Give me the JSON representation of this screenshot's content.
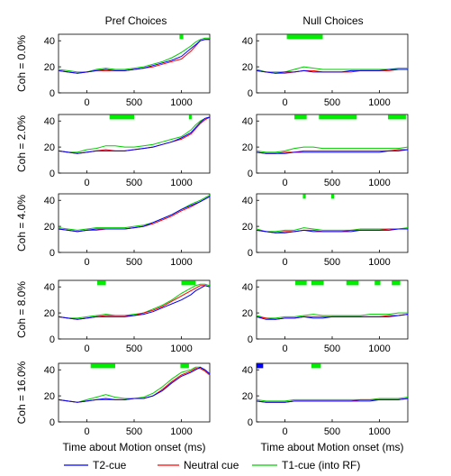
{
  "figure": {
    "x_axis_label": "Time about Motion onset (ms)",
    "legend": [
      {
        "label": "T2-cue",
        "color": "#0000ff"
      },
      {
        "label": "Neutral cue",
        "color": "#ff0000"
      },
      {
        "label": "T1-cue (into RF)",
        "color": "#00cc00"
      }
    ]
  },
  "chart_data": {
    "type": "line",
    "grid": false,
    "legend_placement": "bottom",
    "columns": [
      "Pref Choices",
      "Null Choices"
    ],
    "rows": [
      "Coh = 0.0%",
      "Coh = 2.0%",
      "Coh = 4.0%",
      "Coh = 8.0%",
      "Coh = 16.0%"
    ],
    "xlim": [
      -300,
      1300
    ],
    "ylim": [
      0,
      45
    ],
    "x_ticks": [
      0,
      500,
      1000
    ],
    "y_ticks": [
      0,
      20,
      40
    ],
    "xlabel": "Time about Motion onset (ms)",
    "panels": [
      {
        "row": 0,
        "col": 0,
        "x": [
          -300,
          -200,
          -100,
          0,
          100,
          200,
          300,
          400,
          500,
          600,
          700,
          800,
          900,
          1000,
          1100,
          1150,
          1200,
          1250,
          1300
        ],
        "series": [
          {
            "name": "T2-cue",
            "values": [
              17,
              16,
              15,
              16,
              17,
              18,
              17,
              17,
              18,
              19,
              21,
              23,
              25,
              28,
              34,
              37,
              40,
              41,
              41
            ]
          },
          {
            "name": "Neutral cue",
            "values": [
              17,
              16,
              15,
              16,
              17,
              17,
              17,
              17,
              18,
              19,
              20,
              22,
              24,
              26,
              32,
              36,
              40,
              41,
              41
            ]
          },
          {
            "name": "T1-cue (into RF)",
            "values": [
              18,
              17,
              16,
              16,
              18,
              19,
              18,
              18,
              19,
              20,
              22,
              24,
              27,
              31,
              36,
              39,
              41,
              42,
              42
            ]
          }
        ],
        "significance": [
          [
            980,
            1020
          ]
        ]
      },
      {
        "row": 0,
        "col": 1,
        "x": [
          -300,
          -200,
          -100,
          0,
          100,
          200,
          300,
          400,
          500,
          600,
          700,
          800,
          900,
          1000,
          1100,
          1200,
          1300
        ],
        "series": [
          {
            "name": "T2-cue",
            "values": [
              17,
              16,
              15,
              16,
              16,
              17,
              16,
              16,
              16,
              16,
              17,
              17,
              17,
              17,
              18,
              18,
              18
            ]
          },
          {
            "name": "Neutral cue",
            "values": [
              17,
              16,
              15,
              15,
              16,
              17,
              17,
              16,
              16,
              16,
              16,
              17,
              17,
              17,
              17,
              18,
              18
            ]
          },
          {
            "name": "T1-cue (into RF)",
            "values": [
              18,
              16,
              16,
              16,
              18,
              20,
              19,
              18,
              18,
              18,
              18,
              18,
              18,
              18,
              18,
              19,
              19
            ]
          }
        ],
        "significance": [
          [
            20,
            400
          ]
        ]
      },
      {
        "row": 1,
        "col": 0,
        "x": [
          -300,
          -200,
          -100,
          0,
          100,
          200,
          300,
          400,
          500,
          600,
          700,
          800,
          900,
          1000,
          1100,
          1150,
          1200,
          1250,
          1300
        ],
        "series": [
          {
            "name": "T2-cue",
            "values": [
              17,
              16,
              15,
              16,
              17,
              17,
              17,
              17,
              18,
              19,
              20,
              22,
              24,
              27,
              31,
              35,
              39,
              42,
              43
            ]
          },
          {
            "name": "Neutral cue",
            "values": [
              17,
              16,
              15,
              16,
              17,
              18,
              17,
              17,
              18,
              19,
              20,
              22,
              24,
              26,
              30,
              34,
              38,
              41,
              43
            ]
          },
          {
            "name": "T1-cue (into RF)",
            "values": [
              17,
              16,
              16,
              18,
              19,
              21,
              21,
              20,
              20,
              21,
              22,
              24,
              26,
              28,
              33,
              37,
              40,
              42,
              43
            ]
          }
        ],
        "significance": [
          [
            240,
            500
          ],
          [
            1080,
            1100
          ]
        ]
      },
      {
        "row": 1,
        "col": 1,
        "x": [
          -300,
          -200,
          -100,
          0,
          100,
          200,
          300,
          400,
          500,
          600,
          700,
          800,
          900,
          1000,
          1100,
          1200,
          1300
        ],
        "series": [
          {
            "name": "T2-cue",
            "values": [
              16,
              15,
              15,
              15,
              16,
              16,
              16,
              16,
              16,
              16,
              16,
              16,
              16,
              16,
              17,
              17,
              18
            ]
          },
          {
            "name": "Neutral cue",
            "values": [
              16,
              15,
              15,
              16,
              16,
              17,
              17,
              17,
              17,
              17,
              17,
              17,
              17,
              17,
              17,
              18,
              18
            ]
          },
          {
            "name": "T1-cue (into RF)",
            "values": [
              17,
              16,
              16,
              17,
              19,
              20,
              20,
              19,
              19,
              19,
              19,
              19,
              19,
              19,
              19,
              19,
              20
            ]
          }
        ],
        "significance": [
          [
            100,
            230
          ],
          [
            360,
            760
          ],
          [
            1090,
            1280
          ]
        ]
      },
      {
        "row": 2,
        "col": 0,
        "x": [
          -300,
          -200,
          -100,
          0,
          100,
          200,
          300,
          400,
          500,
          600,
          700,
          800,
          900,
          1000,
          1100,
          1200,
          1300
        ],
        "series": [
          {
            "name": "T2-cue",
            "values": [
              18,
              17,
              16,
              17,
              18,
              18,
              18,
              18,
              19,
              20,
              23,
              26,
              29,
              33,
              36,
              39,
              43
            ]
          },
          {
            "name": "Neutral cue",
            "values": [
              18,
              17,
              16,
              17,
              17,
              18,
              18,
              18,
              19,
              20,
              22,
              25,
              28,
              32,
              35,
              39,
              43
            ]
          },
          {
            "name": "T1-cue (into RF)",
            "values": [
              19,
              18,
              17,
              18,
              19,
              19,
              19,
              19,
              20,
              21,
              23,
              26,
              29,
              33,
              37,
              40,
              44
            ]
          }
        ],
        "significance": []
      },
      {
        "row": 2,
        "col": 1,
        "x": [
          -300,
          -200,
          -100,
          0,
          100,
          200,
          300,
          400,
          500,
          600,
          700,
          800,
          900,
          1000,
          1100,
          1200,
          1300
        ],
        "series": [
          {
            "name": "T2-cue",
            "values": [
              17,
              16,
              15,
              15,
              16,
              17,
              16,
              16,
              16,
              16,
              16,
              17,
              17,
              17,
              17,
              18,
              18
            ]
          },
          {
            "name": "Neutral cue",
            "values": [
              17,
              16,
              15,
              16,
              16,
              17,
              17,
              16,
              16,
              16,
              17,
              17,
              17,
              17,
              18,
              18,
              18
            ]
          },
          {
            "name": "T1-cue (into RF)",
            "values": [
              18,
              16,
              16,
              17,
              17,
              19,
              18,
              17,
              17,
              17,
              17,
              18,
              18,
              18,
              18,
              18,
              19
            ]
          }
        ],
        "significance": [
          [
            190,
            220
          ],
          [
            490,
            520
          ]
        ]
      },
      {
        "row": 3,
        "col": 0,
        "x": [
          -300,
          -200,
          -100,
          0,
          100,
          200,
          300,
          400,
          500,
          600,
          700,
          800,
          900,
          1000,
          1100,
          1150,
          1200,
          1250,
          1300
        ],
        "series": [
          {
            "name": "T2-cue",
            "values": [
              17,
              16,
              15,
              16,
              17,
              17,
              17,
              17,
              18,
              19,
              21,
              24,
              27,
              30,
              34,
              37,
              39,
              41,
              40
            ]
          },
          {
            "name": "Neutral cue",
            "values": [
              17,
              16,
              15,
              16,
              17,
              18,
              18,
              18,
              18,
              20,
              22,
              25,
              29,
              33,
              37,
              39,
              41,
              41,
              40
            ]
          },
          {
            "name": "T1-cue (into RF)",
            "values": [
              17,
              16,
              16,
              17,
              18,
              19,
              18,
              18,
              19,
              20,
              23,
              26,
              30,
              35,
              39,
              41,
              42,
              42,
              41
            ]
          }
        ],
        "significance": [
          [
            110,
            200
          ],
          [
            1000,
            1150
          ]
        ]
      },
      {
        "row": 3,
        "col": 1,
        "x": [
          -300,
          -200,
          -100,
          0,
          100,
          200,
          300,
          400,
          500,
          600,
          700,
          800,
          900,
          1000,
          1100,
          1200,
          1300
        ],
        "series": [
          {
            "name": "T2-cue",
            "values": [
              17,
              15,
              15,
              16,
              16,
              17,
              16,
              16,
              17,
              17,
              17,
              17,
              17,
              17,
              17,
              18,
              19
            ]
          },
          {
            "name": "Neutral cue",
            "values": [
              17,
              16,
              15,
              16,
              16,
              17,
              17,
              17,
              17,
              17,
              17,
              17,
              17,
              17,
              18,
              18,
              19
            ]
          },
          {
            "name": "T1-cue (into RF)",
            "values": [
              18,
              16,
              16,
              17,
              17,
              18,
              19,
              18,
              18,
              18,
              18,
              18,
              19,
              19,
              19,
              20,
              20
            ]
          }
        ],
        "significance": [
          [
            110,
            230
          ],
          [
            280,
            410
          ],
          [
            650,
            780
          ],
          [
            950,
            1010
          ],
          [
            1130,
            1220
          ]
        ]
      },
      {
        "row": 4,
        "col": 0,
        "x": [
          -300,
          -200,
          -100,
          0,
          100,
          200,
          300,
          400,
          500,
          600,
          700,
          800,
          900,
          1000,
          1100,
          1150,
          1200,
          1250,
          1300
        ],
        "series": [
          {
            "name": "T2-cue",
            "values": [
              17,
              16,
              15,
              16,
              17,
              18,
              17,
              17,
              18,
              18,
              20,
              24,
              30,
              35,
              38,
              40,
              42,
              40,
              37
            ]
          },
          {
            "name": "Neutral cue",
            "values": [
              17,
              16,
              15,
              16,
              17,
              17,
              17,
              17,
              18,
              18,
              20,
              25,
              31,
              36,
              39,
              41,
              41,
              39,
              36
            ]
          },
          {
            "name": "T1-cue (into RF)",
            "values": [
              17,
              16,
              15,
              17,
              19,
              21,
              19,
              18,
              18,
              19,
              22,
              27,
              33,
              38,
              40,
              42,
              42,
              39,
              36
            ]
          }
        ],
        "significance": [
          [
            40,
            300
          ],
          [
            990,
            1080
          ]
        ]
      },
      {
        "row": 4,
        "col": 1,
        "x": [
          -300,
          -200,
          -100,
          0,
          100,
          200,
          300,
          400,
          500,
          600,
          700,
          800,
          900,
          1000,
          1100,
          1200,
          1300
        ],
        "series": [
          {
            "name": "T2-cue",
            "values": [
              16,
              15,
              15,
              15,
              16,
              16,
              16,
              16,
              16,
              16,
              16,
              16,
              16,
              17,
              17,
              17,
              18
            ]
          },
          {
            "name": "Neutral cue",
            "values": [
              16,
              15,
              15,
              15,
              16,
              16,
              16,
              16,
              16,
              16,
              16,
              17,
              17,
              17,
              17,
              17,
              18
            ]
          },
          {
            "name": "T1-cue (into RF)",
            "values": [
              17,
              16,
              16,
              16,
              17,
              17,
              17,
              17,
              17,
              17,
              17,
              17,
              17,
              18,
              18,
              18,
              19
            ]
          }
        ],
        "significance": [
          [
            280,
            380
          ]
        ],
        "significance_t2": [
          [
            -300,
            -230
          ]
        ]
      }
    ]
  }
}
